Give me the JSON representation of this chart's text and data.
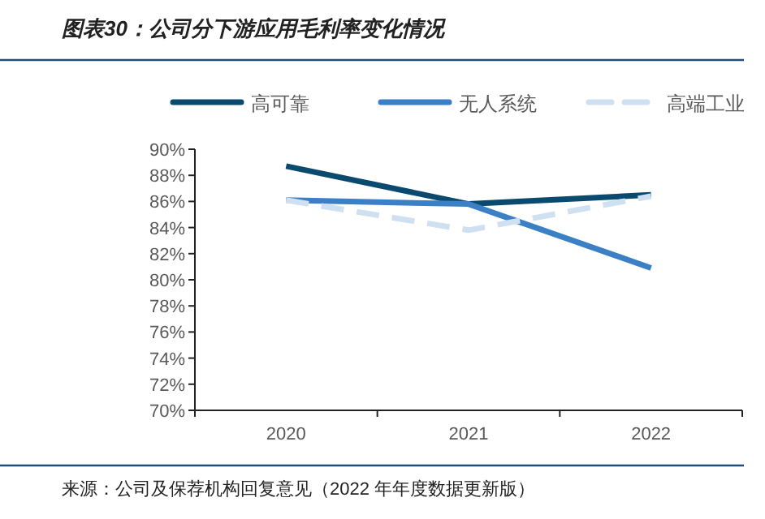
{
  "chart_data": {
    "type": "line",
    "title": "图表30：公司分下游应用毛利率变化情况",
    "annotations": [
      "来源：公司及保荐机构回复意见（2022 年年度数据更新版）"
    ],
    "categories": [
      "2020",
      "2021",
      "2022"
    ],
    "series": [
      {
        "name": "高可靠",
        "color": "#0b4a6f",
        "values": [
          88.7,
          85.8,
          86.5
        ]
      },
      {
        "name": "无人系统",
        "color": "#3b7fc4",
        "values": [
          86.1,
          85.8,
          80.9
        ]
      },
      {
        "name": "高端工业",
        "color": "#cfe0f1",
        "values": [
          86.1,
          83.8,
          86.4
        ],
        "line_style": "dashed"
      }
    ],
    "ylim": [
      70,
      90
    ],
    "yticks": [
      {
        "value": 70,
        "label": "70%"
      },
      {
        "value": 72,
        "label": "72%"
      },
      {
        "value": 74,
        "label": "74%"
      },
      {
        "value": 76,
        "label": "76%"
      },
      {
        "value": 78,
        "label": "78%"
      },
      {
        "value": 80,
        "label": "80%"
      },
      {
        "value": 82,
        "label": "82%"
      },
      {
        "value": 84,
        "label": "84%"
      },
      {
        "value": 86,
        "label": "86%"
      },
      {
        "value": 88,
        "label": "88%"
      },
      {
        "value": 90,
        "label": "90%"
      }
    ],
    "legend": "top",
    "grid": false,
    "marker": "none"
  }
}
